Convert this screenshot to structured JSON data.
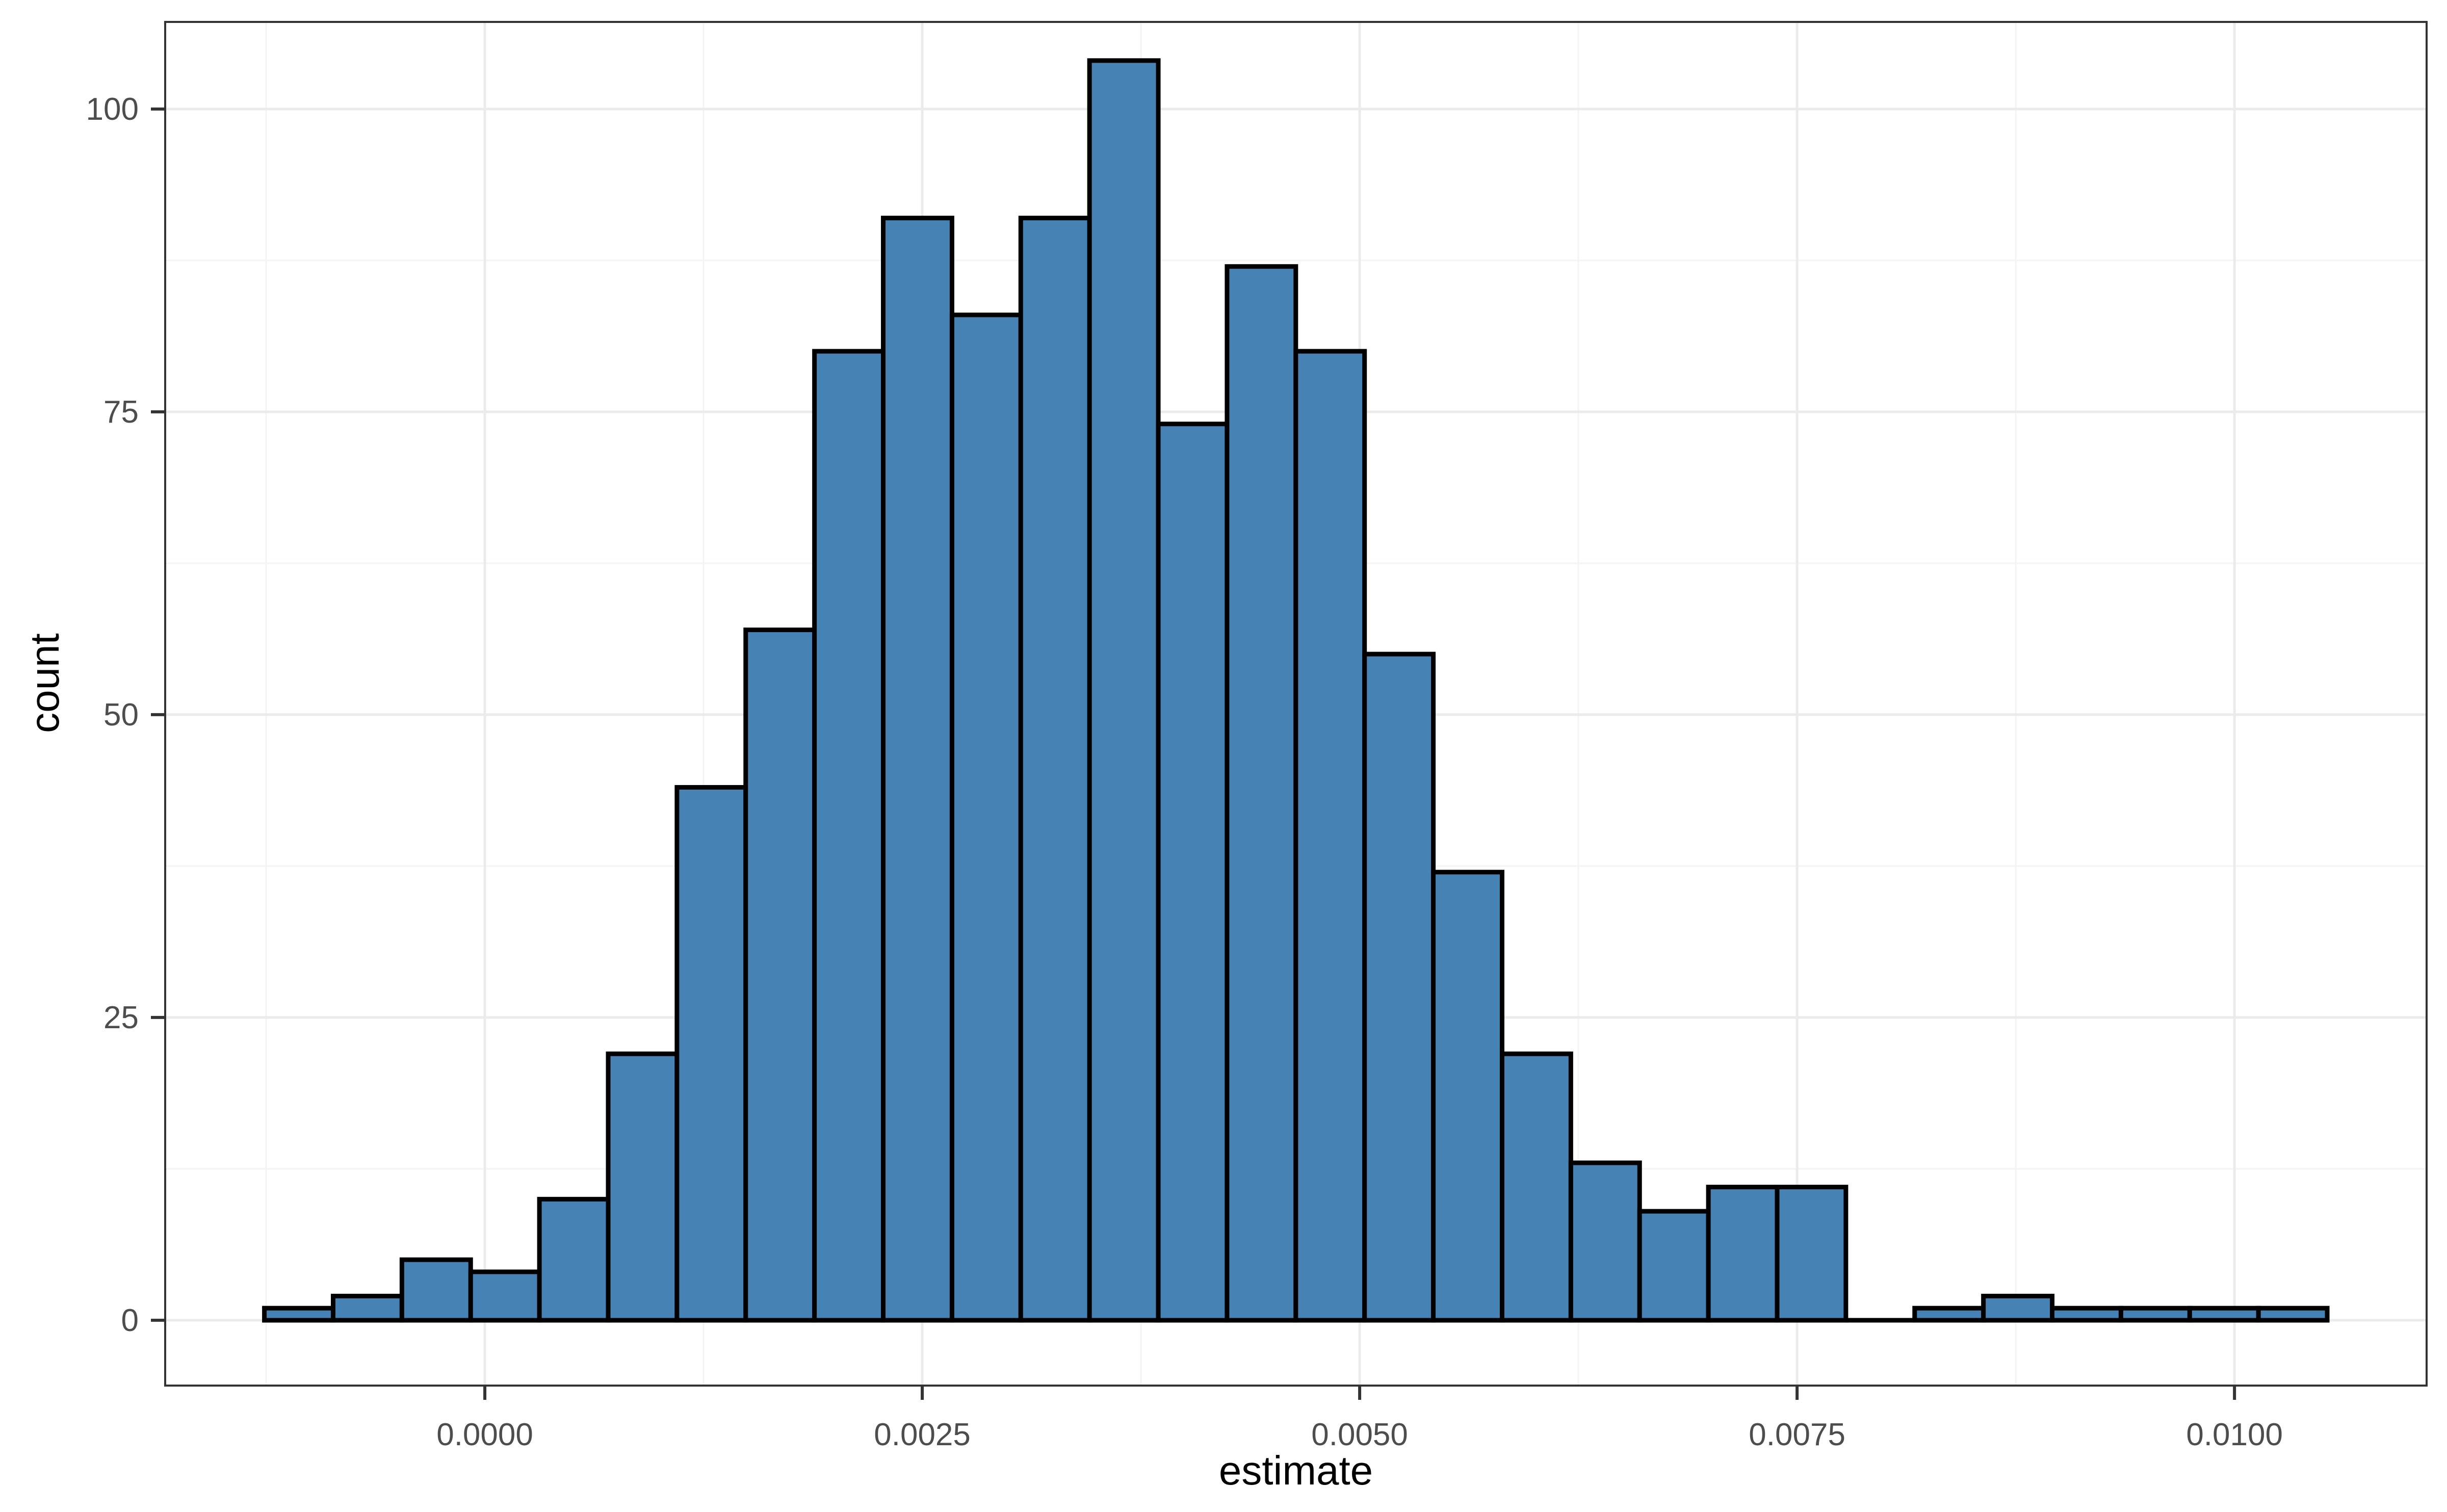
{
  "chart_data": {
    "type": "bar",
    "subtype": "histogram",
    "title": "",
    "xlabel": "estimate",
    "ylabel": "count",
    "bin_start": -0.00126,
    "bin_width": 0.000393,
    "counts": [
      1,
      2,
      5,
      4,
      10,
      22,
      44,
      57,
      80,
      91,
      83,
      91,
      104,
      74,
      87,
      80,
      55,
      37,
      22,
      13,
      9,
      11,
      11,
      0,
      1,
      2,
      1,
      1,
      1,
      1
    ],
    "total_observations": 1000,
    "x_ticks": {
      "values": [
        0.0,
        0.0025,
        0.005,
        0.0075,
        0.01
      ],
      "labels": [
        "0.0000",
        "0.0025",
        "0.0050",
        "0.0075",
        "0.0100"
      ]
    },
    "y_ticks": {
      "values": [
        0,
        25,
        50,
        75,
        100
      ],
      "labels": [
        "0",
        "25",
        "50",
        "75",
        "100"
      ]
    },
    "x_minor_gridlines": [
      -0.00125,
      0.00125,
      0.00375,
      0.00625,
      0.00875,
      0.01125
    ],
    "y_minor_gridlines": [
      12.5,
      37.5,
      62.5,
      87.5
    ],
    "xlim": [
      -0.001827,
      0.011098
    ],
    "ylim": [
      -5.39,
      107.19
    ],
    "grid": "major and minor, light gray on white panel",
    "legend_position": "none",
    "colors": {
      "bar_fill": "#4682B4",
      "bar_outline": "#000000",
      "grid_major": "#EBEBEB",
      "grid_minor": "#F4F4F4",
      "panel_border": "#333333",
      "tick_mark": "#333333",
      "tick_label": "#4D4D4D",
      "axis_title": "#000000",
      "background": "#FFFFFF"
    }
  }
}
